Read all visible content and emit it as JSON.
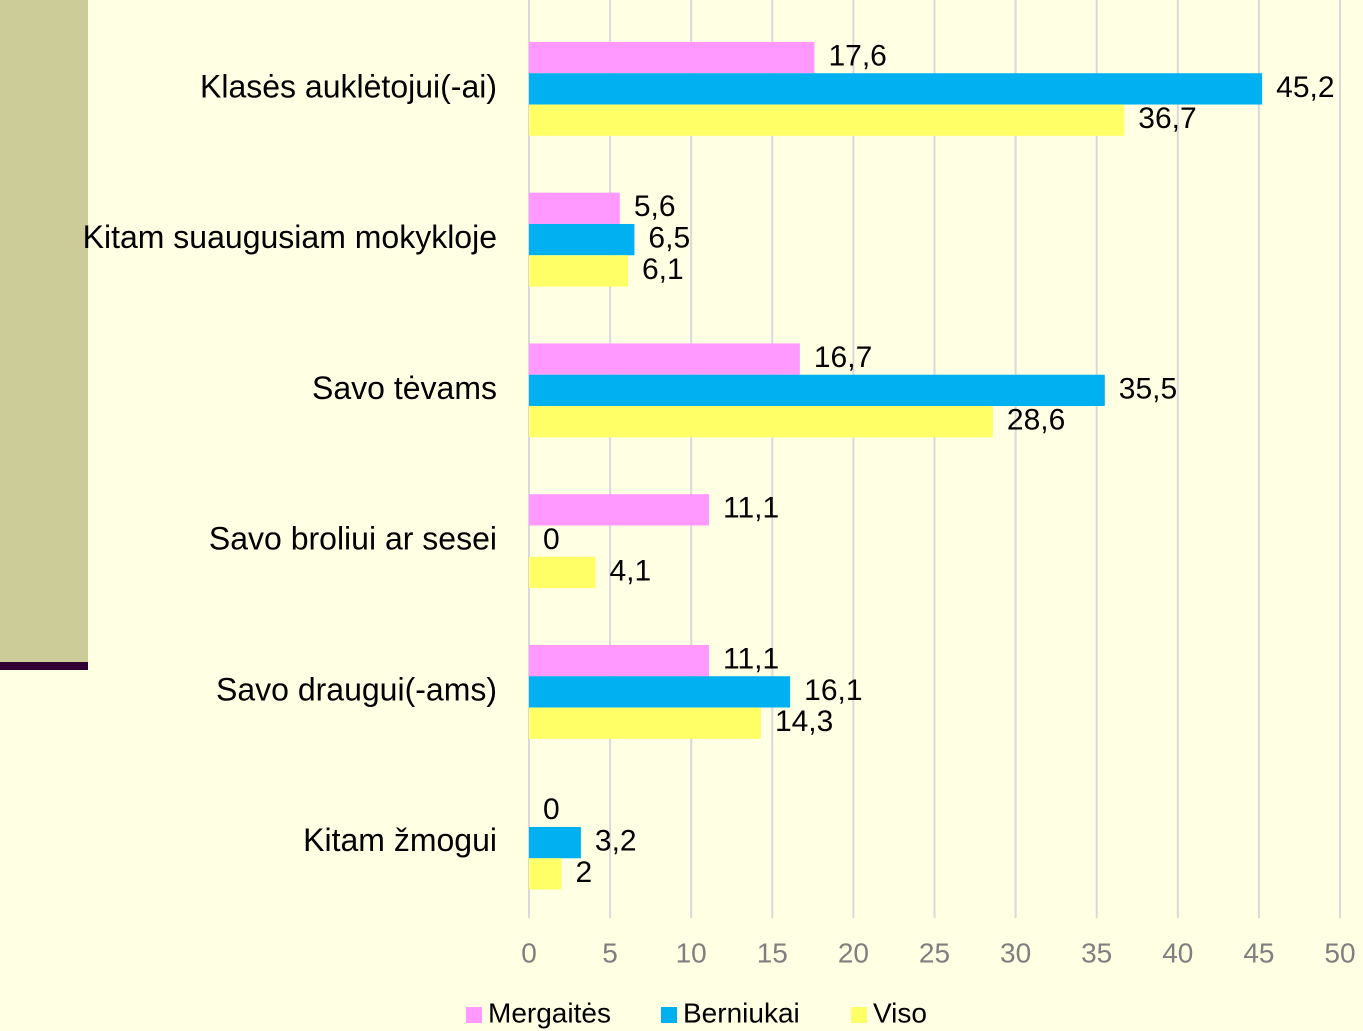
{
  "chart_data": {
    "type": "bar",
    "orientation": "horizontal",
    "categories": [
      "Klasės auklėtojui(-ai)",
      "Kitam suaugusiam mokykloje",
      "Savo tėvams",
      "Savo broliui ar sesei",
      "Savo draugui(-ams)",
      "Kitam žmogui"
    ],
    "series": [
      {
        "name": "Mergaitės",
        "color": "#ff99ff",
        "values": [
          17.6,
          5.6,
          16.7,
          11.1,
          11.1,
          0
        ],
        "value_labels": [
          "17,6",
          "5,6",
          "16,7",
          "11,1",
          "11,1",
          "0"
        ]
      },
      {
        "name": "Berniukai",
        "color": "#00b0f0",
        "values": [
          45.2,
          6.5,
          35.5,
          0,
          16.1,
          3.2
        ],
        "value_labels": [
          "45,2",
          "6,5",
          "35,5",
          "0",
          "16,1",
          "3,2"
        ]
      },
      {
        "name": "Viso",
        "color": "#ffff66",
        "values": [
          36.7,
          6.1,
          28.6,
          4.1,
          14.3,
          2
        ],
        "value_labels": [
          "36,7",
          "6,1",
          "28,6",
          "4,1",
          "14,3",
          "2"
        ]
      }
    ],
    "xlim": [
      0,
      50
    ],
    "xticks": [
      0,
      5,
      10,
      15,
      20,
      25,
      30,
      35,
      40,
      45,
      50
    ],
    "grid": true,
    "legend": "bottom"
  }
}
